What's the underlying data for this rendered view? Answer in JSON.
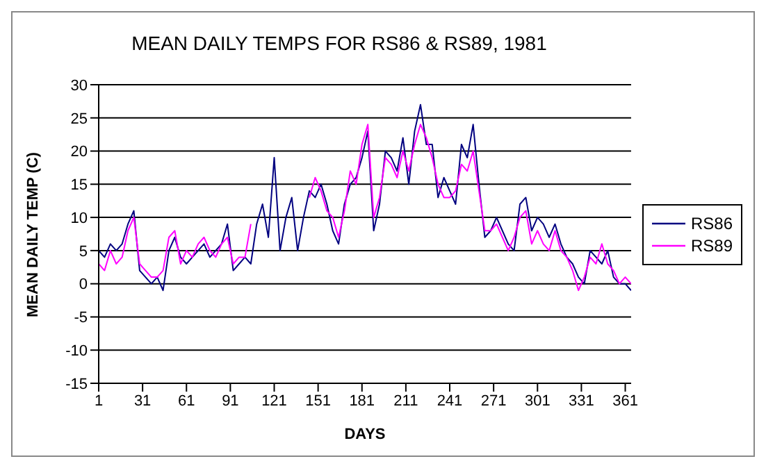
{
  "chart_data": {
    "type": "line",
    "title": "MEAN DAILY TEMPS FOR RS86 & RS89, 1981",
    "xlabel": "DAYS",
    "ylabel": "MEAN DAILY TEMP (C)",
    "x": [
      1,
      5,
      9,
      13,
      17,
      21,
      25,
      29,
      33,
      37,
      41,
      45,
      49,
      53,
      57,
      61,
      65,
      69,
      73,
      77,
      81,
      85,
      89,
      93,
      97,
      101,
      105,
      109,
      113,
      117,
      121,
      125,
      129,
      133,
      137,
      141,
      145,
      149,
      153,
      157,
      161,
      165,
      169,
      173,
      177,
      181,
      185,
      189,
      193,
      197,
      201,
      205,
      209,
      213,
      217,
      221,
      225,
      229,
      233,
      237,
      241,
      245,
      249,
      253,
      257,
      261,
      265,
      269,
      273,
      277,
      281,
      285,
      289,
      293,
      297,
      301,
      305,
      309,
      313,
      317,
      321,
      325,
      329,
      333,
      337,
      341,
      345,
      349,
      353,
      357,
      361,
      365
    ],
    "series": [
      {
        "name": "RS86",
        "color": "#000080",
        "values": [
          5,
          4,
          6,
          5,
          6,
          9,
          11,
          2,
          1,
          0,
          1,
          -1,
          5,
          7,
          4,
          3,
          4,
          5,
          6,
          4,
          5,
          6,
          9,
          2,
          3,
          4,
          3,
          9,
          12,
          7,
          19,
          5,
          10,
          13,
          5,
          10,
          14,
          13,
          15,
          12,
          8,
          6,
          12,
          15,
          16,
          19,
          23,
          8,
          12,
          20,
          19,
          17,
          22,
          15,
          23,
          27,
          21,
          21,
          13,
          16,
          14,
          12,
          21,
          19,
          24,
          15,
          7,
          8,
          10,
          8,
          6,
          5,
          12,
          13,
          8,
          10,
          9,
          7,
          9,
          6,
          4,
          3,
          1,
          0,
          5,
          4,
          3,
          5,
          1,
          0,
          0,
          -1
        ]
      },
      {
        "name": "RS89",
        "color": "#ff00ff",
        "values": [
          3,
          2,
          5,
          3,
          4,
          8,
          10,
          3,
          2,
          1,
          1,
          2,
          7,
          8,
          3,
          5,
          4,
          6,
          7,
          5,
          4,
          6,
          7,
          3,
          4,
          4,
          9,
          null,
          null,
          null,
          null,
          null,
          null,
          null,
          null,
          null,
          13,
          16,
          14,
          11,
          10,
          7,
          11,
          17,
          15,
          21,
          24,
          10,
          13,
          19,
          18,
          16,
          20,
          17,
          21,
          24,
          22,
          19,
          15,
          13,
          13,
          14,
          18,
          17,
          20,
          14,
          8,
          8,
          9,
          7,
          5,
          7,
          10,
          11,
          6,
          8,
          6,
          5,
          8,
          5,
          4,
          2,
          -1,
          1,
          4,
          3,
          6,
          3,
          2,
          0,
          1,
          0
        ]
      }
    ],
    "xlim": [
      1,
      365
    ],
    "xticks": [
      1,
      31,
      61,
      91,
      121,
      151,
      181,
      211,
      241,
      271,
      301,
      331,
      361
    ],
    "ylim": [
      -15,
      30
    ],
    "yticks": [
      -15,
      -10,
      -5,
      0,
      5,
      10,
      15,
      20,
      25,
      30
    ],
    "grid": "y",
    "legend": "right",
    "marker": "none",
    "line_style": "solid"
  }
}
